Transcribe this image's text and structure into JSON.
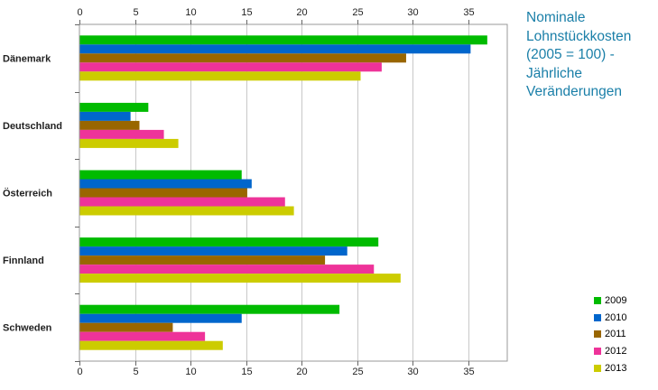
{
  "chart_data": {
    "type": "bar",
    "orientation": "horizontal",
    "title_lines": [
      "Nominale",
      "Lohnstückkosten",
      "(2005 = 100) -",
      "Jährliche",
      "Veränderungen"
    ],
    "categories": [
      "Dänemark",
      "Deutschland",
      "Österreich",
      "Finnland",
      "Schweden"
    ],
    "series": [
      {
        "name": "2009",
        "color": "#00bb00",
        "values": [
          36.7,
          6.2,
          14.6,
          26.9,
          23.4
        ]
      },
      {
        "name": "2010",
        "color": "#0066cc",
        "values": [
          35.2,
          4.6,
          15.5,
          24.1,
          14.6
        ]
      },
      {
        "name": "2011",
        "color": "#996600",
        "values": [
          29.4,
          5.4,
          15.1,
          22.1,
          8.4
        ]
      },
      {
        "name": "2012",
        "color": "#ee3399",
        "values": [
          27.2,
          7.6,
          18.5,
          26.5,
          11.3
        ]
      },
      {
        "name": "2013",
        "color": "#cccc00",
        "values": [
          25.3,
          8.9,
          19.3,
          28.9,
          12.9
        ]
      }
    ],
    "x_ticks": [
      0,
      5,
      10,
      15,
      20,
      25,
      30,
      35
    ],
    "xlim": [
      0,
      38.5
    ],
    "grid": true,
    "legend_position": "bottom-right"
  }
}
